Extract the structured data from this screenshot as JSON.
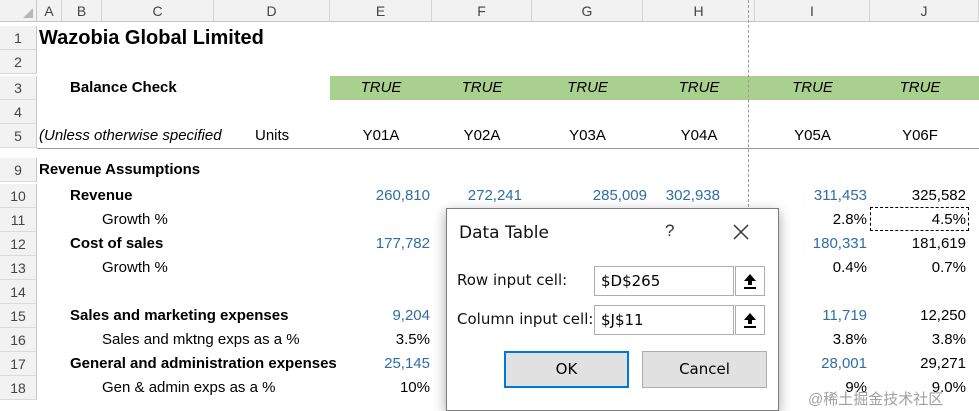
{
  "columns": [
    "A",
    "B",
    "C",
    "D",
    "E",
    "F",
    "G",
    "H",
    "I",
    "J"
  ],
  "rows": [
    "1",
    "2",
    "3",
    "4",
    "5",
    "9",
    "10",
    "11",
    "12",
    "13",
    "14",
    "15",
    "16",
    "17",
    "18"
  ],
  "sheet": {
    "title": "Wazobia Global Limited",
    "balance_check": {
      "label": "Balance Check",
      "values": [
        "TRUE",
        "TRUE",
        "TRUE",
        "TRUE",
        "TRUE",
        "TRUE"
      ]
    },
    "units_row": {
      "note": "(Unless otherwise specified",
      "units_label": "Units",
      "years": [
        "Y01A",
        "Y02A",
        "Y03A",
        "Y04A",
        "Y05A",
        "Y06F"
      ]
    },
    "revenue_assumptions": "Revenue Assumptions",
    "revenue": {
      "label": "Revenue",
      "E": "260,810",
      "F": "272,241",
      "G": "285,009",
      "H": "302,938",
      "I": "311,453",
      "J": "325,582"
    },
    "growth1": {
      "label": "Growth %",
      "I": "2.8%",
      "J": "4.5%"
    },
    "cost_of_sales": {
      "label": "Cost of sales",
      "E": "177,782",
      "I": "180,331",
      "J": "181,619"
    },
    "growth2": {
      "label": "Growth %",
      "I": "0.4%",
      "J": "0.7%"
    },
    "sales_marketing": {
      "label": "Sales and marketing expenses",
      "E": "9,204",
      "I": "11,719",
      "J": "12,250"
    },
    "sales_mktng_pct": {
      "label": "Sales and mktng exps as a %",
      "E": "3.5%",
      "I": "3.8%",
      "J": "3.8%"
    },
    "gen_admin": {
      "label": "General and administration expenses",
      "E": "25,145",
      "I": "28,001",
      "J": "29,271"
    },
    "gen_admin_pct": {
      "label": "Gen & admin exps as a %",
      "E": "10%",
      "I": "9%",
      "J": "9.0%"
    }
  },
  "dialog": {
    "title": "Data Table",
    "help": "?",
    "row_input_label": "Row input cell:",
    "row_input_value": "$D$265",
    "column_input_label": "Column input cell:",
    "column_input_value": "$J$11",
    "ok": "OK",
    "cancel": "Cancel"
  },
  "watermark": "@稀土掘金技术社区",
  "colors": {
    "balance_band": "#a9d08e",
    "input_blue": "#2e6da4",
    "ok_border": "#0078d7"
  }
}
